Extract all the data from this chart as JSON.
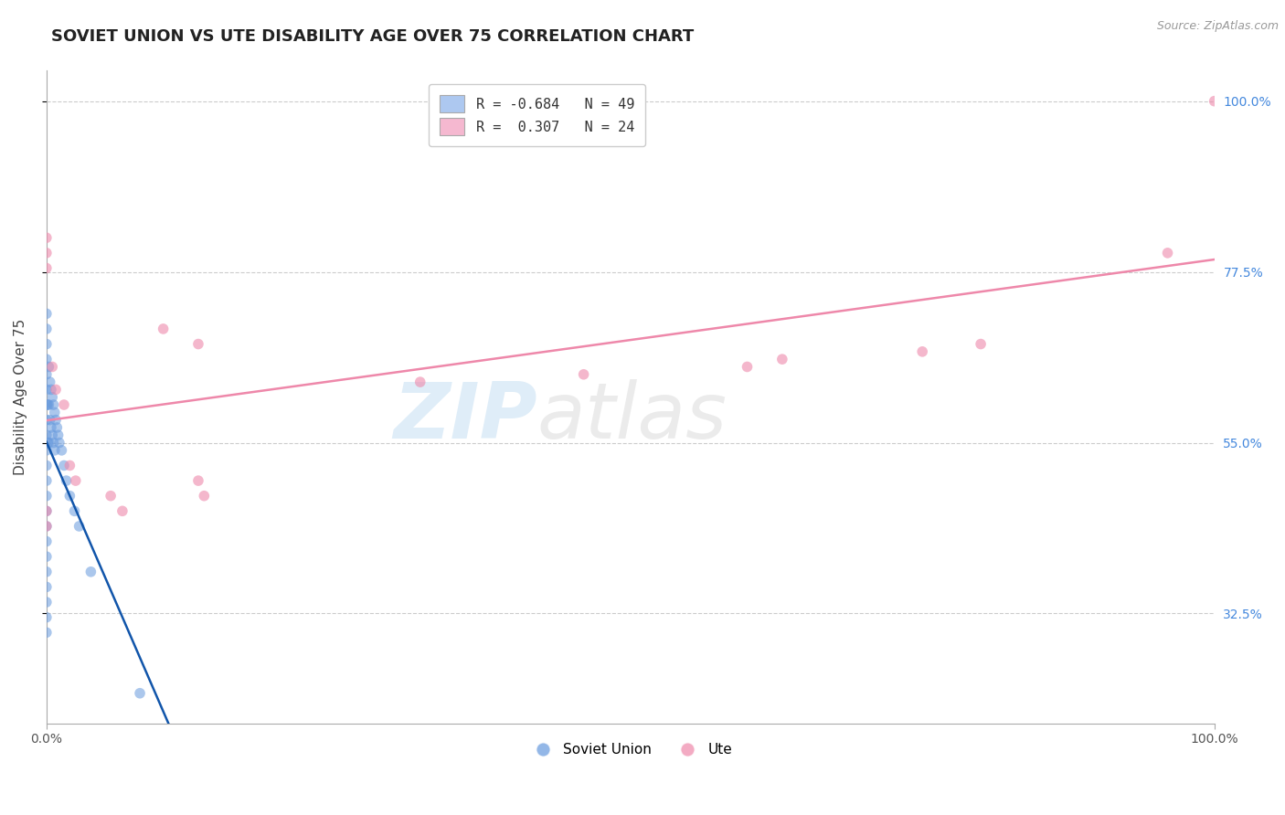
{
  "title": "SOVIET UNION VS UTE DISABILITY AGE OVER 75 CORRELATION CHART",
  "source_text": "Source: ZipAtlas.com",
  "ylabel": "Disability Age Over 75",
  "legend_entries": [
    {
      "label_r": "R = -0.684",
      "label_n": "N = 49",
      "color": "#adc8f0"
    },
    {
      "label_r": "R =  0.307",
      "label_n": "N = 24",
      "color": "#f5b8d0"
    }
  ],
  "soviet_union_color": "#6699dd",
  "ute_color": "#ee88aa",
  "soviet_union_line_color": "#1155aa",
  "ute_line_color": "#ee88aa",
  "background_color": "#ffffff",
  "grid_color": "#cccccc",
  "watermark_zip": "ZIP",
  "watermark_atlas": "atlas",
  "xlim": [
    0.0,
    1.0
  ],
  "ylim": [
    0.18,
    1.04
  ],
  "y_ticks": [
    0.325,
    0.55,
    0.775,
    1.0
  ],
  "y_tick_labels": [
    "32.5%",
    "55.0%",
    "77.5%",
    "100.0%"
  ],
  "title_fontsize": 13,
  "axis_label_fontsize": 11,
  "tick_fontsize": 10,
  "soviet_union_x": [
    0.0,
    0.0,
    0.0,
    0.0,
    0.0,
    0.0,
    0.0,
    0.0,
    0.0,
    0.0,
    0.0,
    0.0,
    0.0,
    0.0,
    0.0,
    0.0,
    0.0,
    0.0,
    0.0,
    0.0,
    0.0,
    0.0,
    0.001,
    0.001,
    0.002,
    0.002,
    0.002,
    0.003,
    0.003,
    0.004,
    0.004,
    0.005,
    0.005,
    0.006,
    0.006,
    0.007,
    0.007,
    0.008,
    0.009,
    0.01,
    0.011,
    0.013,
    0.015,
    0.017,
    0.02,
    0.024,
    0.028,
    0.038,
    0.08
  ],
  "soviet_union_y": [
    0.72,
    0.7,
    0.68,
    0.66,
    0.64,
    0.62,
    0.6,
    0.58,
    0.56,
    0.54,
    0.52,
    0.5,
    0.48,
    0.46,
    0.44,
    0.42,
    0.4,
    0.38,
    0.36,
    0.34,
    0.32,
    0.3,
    0.6,
    0.55,
    0.65,
    0.6,
    0.55,
    0.63,
    0.58,
    0.62,
    0.57,
    0.61,
    0.56,
    0.6,
    0.55,
    0.59,
    0.54,
    0.58,
    0.57,
    0.56,
    0.55,
    0.54,
    0.52,
    0.5,
    0.48,
    0.46,
    0.44,
    0.38,
    0.22
  ],
  "ute_x": [
    0.0,
    0.0,
    0.0,
    0.005,
    0.008,
    0.015,
    0.1,
    0.13,
    0.32,
    0.46,
    0.6,
    0.63,
    0.75,
    0.8,
    0.96,
    1.0,
    0.0,
    0.0,
    0.02,
    0.025,
    0.055,
    0.065,
    0.13,
    0.135
  ],
  "ute_y": [
    0.82,
    0.8,
    0.78,
    0.65,
    0.62,
    0.6,
    0.7,
    0.68,
    0.63,
    0.64,
    0.65,
    0.66,
    0.67,
    0.68,
    0.8,
    1.0,
    0.46,
    0.44,
    0.52,
    0.5,
    0.48,
    0.46,
    0.5,
    0.48
  ]
}
